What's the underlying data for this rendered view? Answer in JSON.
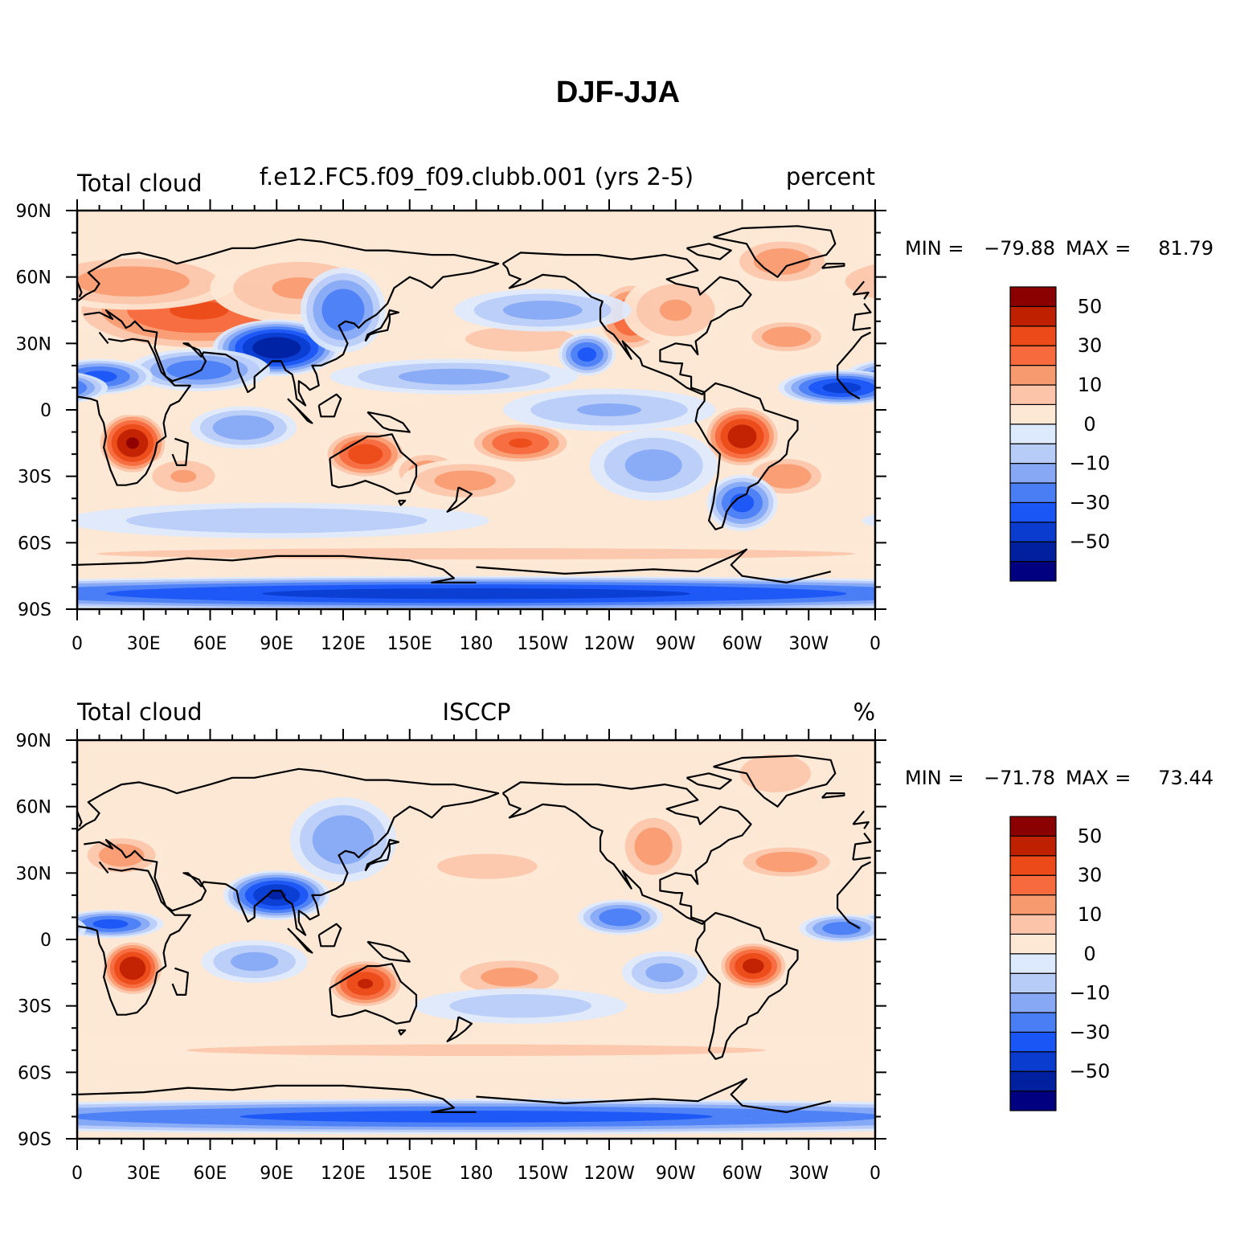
{
  "figure": {
    "title": "DJF-JJA"
  },
  "panels": [
    {
      "left_title": "Total cloud",
      "center_title": "f.e12.FC5.f09_f09.clubb.001 (yrs 2-5)",
      "right_title": "percent",
      "min_label": "MIN = ",
      "min_value": "−79.88",
      "max_label": "MAX = ",
      "max_value": "81.79"
    },
    {
      "left_title": "Total cloud",
      "center_title": "ISCCP",
      "right_title": "%",
      "min_label": "MIN = ",
      "min_value": "−71.78",
      "max_label": "MAX = ",
      "max_value": "73.44"
    }
  ],
  "axes": {
    "lat_labels": [
      "90N",
      "60N",
      "30N",
      "0",
      "30S",
      "60S",
      "90S"
    ],
    "lon_labels": [
      "0",
      "30E",
      "60E",
      "90E",
      "120E",
      "150E",
      "180",
      "150W",
      "120W",
      "90W",
      "60W",
      "30W",
      "0"
    ]
  },
  "colorbar": {
    "colors": [
      "#000080",
      "#00209f",
      "#0a3ccf",
      "#1a55f5",
      "#4a7ef5",
      "#86a8f5",
      "#b8ccf8",
      "#dde9fd",
      "#fde8d6",
      "#fcc5aa",
      "#f89a70",
      "#f66a3e",
      "#ec4a18",
      "#bf2000",
      "#8b0000"
    ],
    "labels": [
      "−50",
      "−30",
      "−10",
      "0",
      "10",
      "30",
      "50"
    ]
  },
  "chart_data": [
    {
      "type": "heatmap",
      "title": "DJF-JJA",
      "subtitle": "f.e12.FC5.f09_f09.clubb.001 (yrs 2-5)",
      "variable": "Total cloud",
      "units": "percent",
      "x_range": [
        0,
        360
      ],
      "y_range": [
        -90,
        90
      ],
      "min": -79.88,
      "max": 81.79,
      "levels": [
        -70,
        -60,
        -50,
        -40,
        -30,
        -20,
        -10,
        0,
        10,
        20,
        30,
        40,
        50,
        60
      ],
      "anomalies": [
        {
          "lon": 55,
          "lat": 45,
          "value": 42,
          "sx": 38,
          "sy": 12
        },
        {
          "lon": 25,
          "lat": 58,
          "value": 28,
          "sx": 30,
          "sy": 8
        },
        {
          "lon": 100,
          "lat": 55,
          "value": 22,
          "sx": 25,
          "sy": 10
        },
        {
          "lon": 25,
          "lat": -15,
          "value": 62,
          "sx": 10,
          "sy": 9
        },
        {
          "lon": 48,
          "lat": -30,
          "value": 22,
          "sx": 12,
          "sy": 6
        },
        {
          "lon": 130,
          "lat": -20,
          "value": 48,
          "sx": 12,
          "sy": 7
        },
        {
          "lon": 158,
          "lat": -28,
          "value": 28,
          "sx": 10,
          "sy": 6
        },
        {
          "lon": 200,
          "lat": -15,
          "value": 42,
          "sx": 15,
          "sy": 6
        },
        {
          "lon": 175,
          "lat": -32,
          "value": 26,
          "sx": 18,
          "sy": 6
        },
        {
          "lon": 300,
          "lat": -12,
          "value": 58,
          "sx": 11,
          "sy": 9
        },
        {
          "lon": 320,
          "lat": -30,
          "value": 30,
          "sx": 12,
          "sy": 6
        },
        {
          "lon": 250,
          "lat": 42,
          "value": 42,
          "sx": 10,
          "sy": 10
        },
        {
          "lon": 270,
          "lat": 45,
          "value": 22,
          "sx": 15,
          "sy": 10
        },
        {
          "lon": 320,
          "lat": 33,
          "value": 30,
          "sx": 12,
          "sy": 5
        },
        {
          "lon": 318,
          "lat": 67,
          "value": 28,
          "sx": 15,
          "sy": 7
        },
        {
          "lon": 200,
          "lat": 32,
          "value": 20,
          "sx": 22,
          "sy": 5
        },
        {
          "lon": 60,
          "lat": 5,
          "value": 10,
          "sx": 60,
          "sy": 5
        },
        {
          "lon": 90,
          "lat": 28,
          "value": -70,
          "sx": 18,
          "sy": 8
        },
        {
          "lon": 55,
          "lat": 18,
          "value": -38,
          "sx": 20,
          "sy": 6
        },
        {
          "lon": 10,
          "lat": 15,
          "value": -45,
          "sx": 15,
          "sy": 5
        },
        {
          "lon": 120,
          "lat": 45,
          "value": -40,
          "sx": 12,
          "sy": 12
        },
        {
          "lon": 75,
          "lat": -8,
          "value": -30,
          "sx": 15,
          "sy": 6
        },
        {
          "lon": 170,
          "lat": 15,
          "value": -25,
          "sx": 35,
          "sy": 5
        },
        {
          "lon": 230,
          "lat": 25,
          "value": -45,
          "sx": 8,
          "sy": 6
        },
        {
          "lon": 210,
          "lat": 45,
          "value": -25,
          "sx": 25,
          "sy": 6
        },
        {
          "lon": 240,
          "lat": 0,
          "value": -22,
          "sx": 30,
          "sy": 6
        },
        {
          "lon": 345,
          "lat": 10,
          "value": -55,
          "sx": 18,
          "sy": 5
        },
        {
          "lon": 300,
          "lat": -42,
          "value": -45,
          "sx": 10,
          "sy": 8
        },
        {
          "lon": 260,
          "lat": -25,
          "value": -25,
          "sx": 18,
          "sy": 10
        },
        {
          "lon": 90,
          "lat": -50,
          "value": -20,
          "sx": 60,
          "sy": 5
        },
        {
          "lon": 180,
          "lat": -83,
          "value": -55,
          "sx": 200,
          "sy": 5
        },
        {
          "lon": 180,
          "lat": -65,
          "value": 14,
          "sx": 200,
          "sy": 3
        }
      ]
    },
    {
      "type": "heatmap",
      "title": "DJF-JJA",
      "subtitle": "ISCCP",
      "variable": "Total cloud",
      "units": "%",
      "x_range": [
        0,
        360
      ],
      "y_range": [
        -90,
        90
      ],
      "min": -71.78,
      "max": 73.44,
      "levels": [
        -70,
        -60,
        -50,
        -40,
        -30,
        -20,
        -10,
        0,
        10,
        20,
        30,
        40,
        50,
        60
      ],
      "anomalies": [
        {
          "lon": 25,
          "lat": -13,
          "value": 60,
          "sx": 9,
          "sy": 8
        },
        {
          "lon": 130,
          "lat": -20,
          "value": 52,
          "sx": 11,
          "sy": 7
        },
        {
          "lon": 305,
          "lat": -12,
          "value": 55,
          "sx": 10,
          "sy": 7
        },
        {
          "lon": 20,
          "lat": 38,
          "value": 28,
          "sx": 12,
          "sy": 6
        },
        {
          "lon": 260,
          "lat": 42,
          "value": 28,
          "sx": 10,
          "sy": 10
        },
        {
          "lon": 320,
          "lat": 35,
          "value": 30,
          "sx": 15,
          "sy": 5
        },
        {
          "lon": 185,
          "lat": 33,
          "value": 20,
          "sx": 20,
          "sy": 5
        },
        {
          "lon": 195,
          "lat": -17,
          "value": 25,
          "sx": 18,
          "sy": 6
        },
        {
          "lon": 315,
          "lat": 75,
          "value": 18,
          "sx": 15,
          "sy": 8
        },
        {
          "lon": 90,
          "lat": 20,
          "value": -62,
          "sx": 15,
          "sy": 7
        },
        {
          "lon": 120,
          "lat": 45,
          "value": -30,
          "sx": 15,
          "sy": 12
        },
        {
          "lon": 15,
          "lat": 7,
          "value": -45,
          "sx": 15,
          "sy": 4
        },
        {
          "lon": 245,
          "lat": 10,
          "value": -40,
          "sx": 12,
          "sy": 5
        },
        {
          "lon": 345,
          "lat": 5,
          "value": -38,
          "sx": 12,
          "sy": 4
        },
        {
          "lon": 80,
          "lat": -10,
          "value": -25,
          "sx": 15,
          "sy": 6
        },
        {
          "lon": 265,
          "lat": -15,
          "value": -25,
          "sx": 12,
          "sy": 6
        },
        {
          "lon": 200,
          "lat": -30,
          "value": -18,
          "sx": 30,
          "sy": 5
        },
        {
          "lon": 180,
          "lat": -80,
          "value": -45,
          "sx": 200,
          "sy": 5
        },
        {
          "lon": 180,
          "lat": -50,
          "value": 12,
          "sx": 200,
          "sy": 4
        }
      ]
    }
  ]
}
